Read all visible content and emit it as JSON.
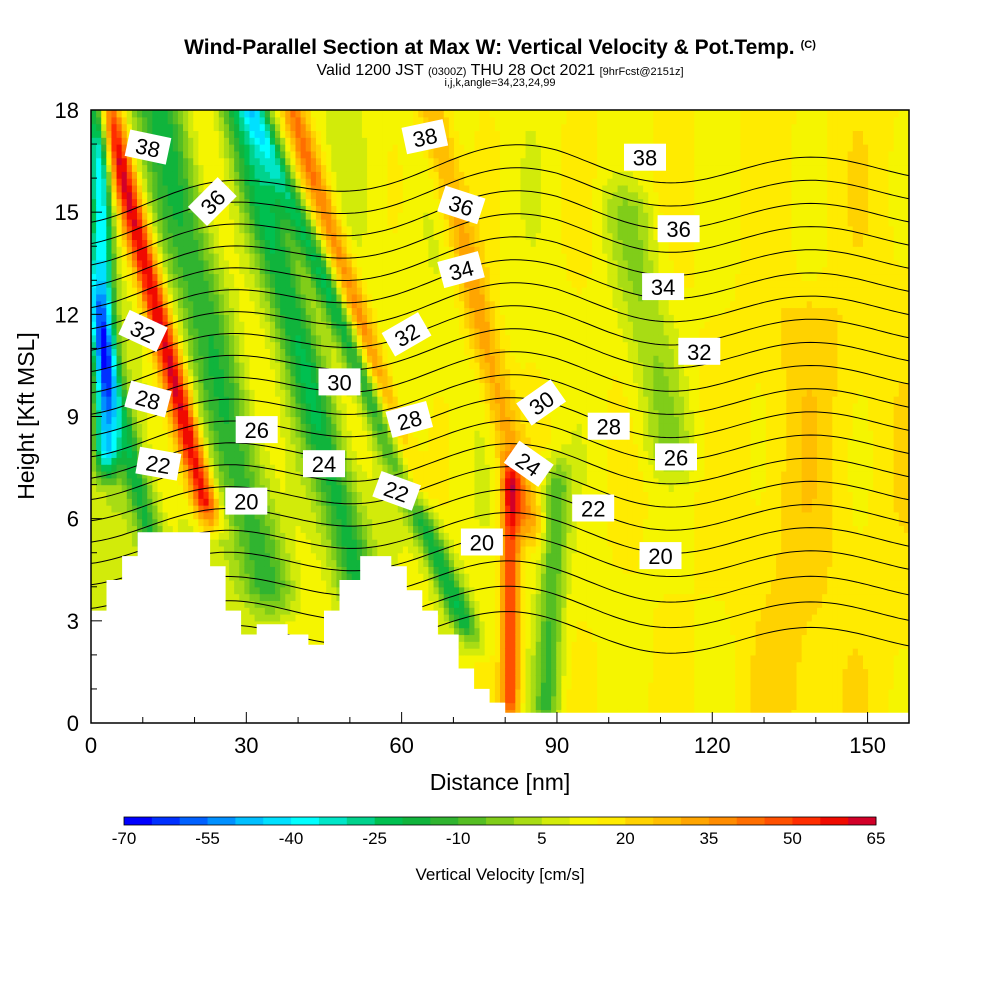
{
  "header": {
    "title": "Wind-Parallel Section at Max W: Vertical Velocity & Pot.Temp.",
    "title_tag": "(C)",
    "valid_prefix": "Valid 1200 JST",
    "valid_zulu": "(0300Z)",
    "valid_date": "THU 28 Oct 2021",
    "forecast_tag": "[9hrFcst@2151z]",
    "indices": "i,j,k,angle=34,23,24,99"
  },
  "chart_data": {
    "type": "heatmap",
    "xlabel": "Distance [nm]",
    "ylabel": "Height [Kft MSL]",
    "xlim": [
      0,
      158
    ],
    "ylim": [
      0,
      18
    ],
    "x_ticks": [
      "0",
      "30",
      "60",
      "90",
      "120",
      "150"
    ],
    "y_ticks": [
      "0",
      "3",
      "6",
      "9",
      "12",
      "15",
      "18"
    ],
    "colorbar": {
      "title": "Vertical Velocity [cm/s]",
      "tick_labels": [
        "-70",
        "-55",
        "-40",
        "-25",
        "-10",
        "5",
        "20",
        "35",
        "50",
        "65"
      ],
      "range": [
        -70,
        65
      ],
      "step": 5,
      "colors": [
        "#0000ff",
        "#0030ff",
        "#0060ff",
        "#0090ff",
        "#00bfff",
        "#00e0ff",
        "#00ffff",
        "#00e6c8",
        "#00d28c",
        "#00c050",
        "#10b43c",
        "#30b430",
        "#55be23",
        "#80cd19",
        "#a8dc14",
        "#d2eb0a",
        "#f5f500",
        "#ffeb00",
        "#ffd200",
        "#ffbe00",
        "#ffa500",
        "#ff8c00",
        "#ff6e00",
        "#ff5000",
        "#ff2d00",
        "#f00a00",
        "#d20028",
        "#b40046",
        "#96005f",
        "#780078",
        "#5a008c"
      ]
    },
    "velocity_features": [
      {
        "x": 3,
        "w": 2.2,
        "y0": 8,
        "y1": 18,
        "tilt": -0.05,
        "value": -42
      },
      {
        "x": 22,
        "w": 2.5,
        "y0": 6.5,
        "y1": 18,
        "tilt": -0.55,
        "value": 60
      },
      {
        "x": 14,
        "w": 2.5,
        "y0": 4,
        "y1": 18,
        "tilt": -0.55,
        "value": -18
      },
      {
        "x": 34,
        "w": 5,
        "y0": 4,
        "y1": 18,
        "tilt": -0.5,
        "value": -16
      },
      {
        "x": 43,
        "w": 3.5,
        "y0": 3,
        "y1": 18,
        "tilt": -0.5,
        "value": 12
      },
      {
        "x": 52,
        "w": 4,
        "y0": 4,
        "y1": 18,
        "tilt": -0.55,
        "value": -22
      },
      {
        "x": 62,
        "w": 2.5,
        "y0": 7,
        "y1": 18,
        "tilt": -0.7,
        "value": 36
      },
      {
        "x": 72,
        "w": 2.6,
        "y0": 3,
        "y1": 18,
        "tilt": -0.9,
        "value": -24
      },
      {
        "x": 81,
        "w": 1.8,
        "y0": 0.6,
        "y1": 7,
        "tilt": 0,
        "value": 45
      },
      {
        "x": 84,
        "w": 3,
        "y0": 6,
        "y1": 18,
        "tilt": -0.5,
        "value": 28
      },
      {
        "x": 88,
        "w": 2.5,
        "y0": 0.5,
        "y1": 7,
        "tilt": 0.1,
        "value": -15
      },
      {
        "x": 112,
        "w": 5,
        "y0": 8,
        "y1": 15,
        "tilt": -0.4,
        "value": -6
      },
      {
        "x": 135,
        "w": 8,
        "y0": 0.5,
        "y1": 12,
        "tilt": 0.1,
        "value": 14
      }
    ],
    "terrain": [
      [
        0,
        3.3
      ],
      [
        3,
        3.3
      ],
      [
        3,
        4.2
      ],
      [
        6,
        4.2
      ],
      [
        6,
        4.9
      ],
      [
        9,
        4.9
      ],
      [
        9,
        5.6
      ],
      [
        23,
        5.6
      ],
      [
        23,
        4.6
      ],
      [
        26,
        4.6
      ],
      [
        26,
        3.3
      ],
      [
        29,
        3.3
      ],
      [
        29,
        2.6
      ],
      [
        32,
        2.6
      ],
      [
        32,
        2.9
      ],
      [
        38,
        2.9
      ],
      [
        38,
        2.6
      ],
      [
        42,
        2.6
      ],
      [
        42,
        2.3
      ],
      [
        45,
        2.3
      ],
      [
        45,
        3.3
      ],
      [
        48,
        3.3
      ],
      [
        48,
        4.2
      ],
      [
        52,
        4.2
      ],
      [
        52,
        4.9
      ],
      [
        58,
        4.9
      ],
      [
        58,
        4.6
      ],
      [
        61,
        4.6
      ],
      [
        61,
        3.9
      ],
      [
        64,
        3.9
      ],
      [
        64,
        3.3
      ],
      [
        67,
        3.3
      ],
      [
        67,
        2.6
      ],
      [
        71,
        2.6
      ],
      [
        71,
        1.6
      ],
      [
        74,
        1.6
      ],
      [
        74,
        1.0
      ],
      [
        77,
        1.0
      ],
      [
        77,
        0.6
      ],
      [
        80,
        0.6
      ],
      [
        80,
        0.3
      ],
      [
        158,
        0.3
      ]
    ],
    "theta_levels": [
      19,
      20,
      21,
      22,
      23,
      24,
      25,
      26,
      27,
      28,
      29,
      30,
      31,
      32,
      33,
      34,
      35,
      36,
      37,
      38,
      39
    ],
    "theta_labels": [
      {
        "text": "38",
        "x": 11,
        "y": 16.9,
        "angle": 12
      },
      {
        "text": "36",
        "x": 23.5,
        "y": 15.3,
        "angle": -45
      },
      {
        "text": "32",
        "x": 10,
        "y": 11.5,
        "angle": 25
      },
      {
        "text": "28",
        "x": 11,
        "y": 9.5,
        "angle": 15
      },
      {
        "text": "22",
        "x": 13,
        "y": 7.6,
        "angle": 10
      },
      {
        "text": "20",
        "x": 30,
        "y": 6.5,
        "angle": 0
      },
      {
        "text": "26",
        "x": 32,
        "y": 8.6,
        "angle": 0
      },
      {
        "text": "30",
        "x": 48,
        "y": 10.0,
        "angle": 0
      },
      {
        "text": "24",
        "x": 45,
        "y": 7.6,
        "angle": 0
      },
      {
        "text": "38",
        "x": 64.5,
        "y": 17.2,
        "angle": -12
      },
      {
        "text": "36",
        "x": 71.5,
        "y": 15.2,
        "angle": 18
      },
      {
        "text": "34",
        "x": 71.5,
        "y": 13.3,
        "angle": -15
      },
      {
        "text": "32",
        "x": 61,
        "y": 11.4,
        "angle": -30
      },
      {
        "text": "28",
        "x": 61.5,
        "y": 8.9,
        "angle": -15
      },
      {
        "text": "22",
        "x": 59,
        "y": 6.8,
        "angle": 20
      },
      {
        "text": "20",
        "x": 75.5,
        "y": 5.3,
        "angle": 0
      },
      {
        "text": "24",
        "x": 84.5,
        "y": 7.6,
        "angle": 35
      },
      {
        "text": "30",
        "x": 87,
        "y": 9.4,
        "angle": -35
      },
      {
        "text": "38",
        "x": 107,
        "y": 16.6,
        "angle": 0
      },
      {
        "text": "36",
        "x": 113.5,
        "y": 14.5,
        "angle": 0
      },
      {
        "text": "34",
        "x": 110.5,
        "y": 12.8,
        "angle": 0
      },
      {
        "text": "32",
        "x": 117.5,
        "y": 10.9,
        "angle": 0
      },
      {
        "text": "28",
        "x": 100,
        "y": 8.7,
        "angle": 0
      },
      {
        "text": "26",
        "x": 113,
        "y": 7.8,
        "angle": 0
      },
      {
        "text": "22",
        "x": 97,
        "y": 6.3,
        "angle": 0
      },
      {
        "text": "20",
        "x": 110,
        "y": 4.9,
        "angle": 0
      }
    ]
  }
}
